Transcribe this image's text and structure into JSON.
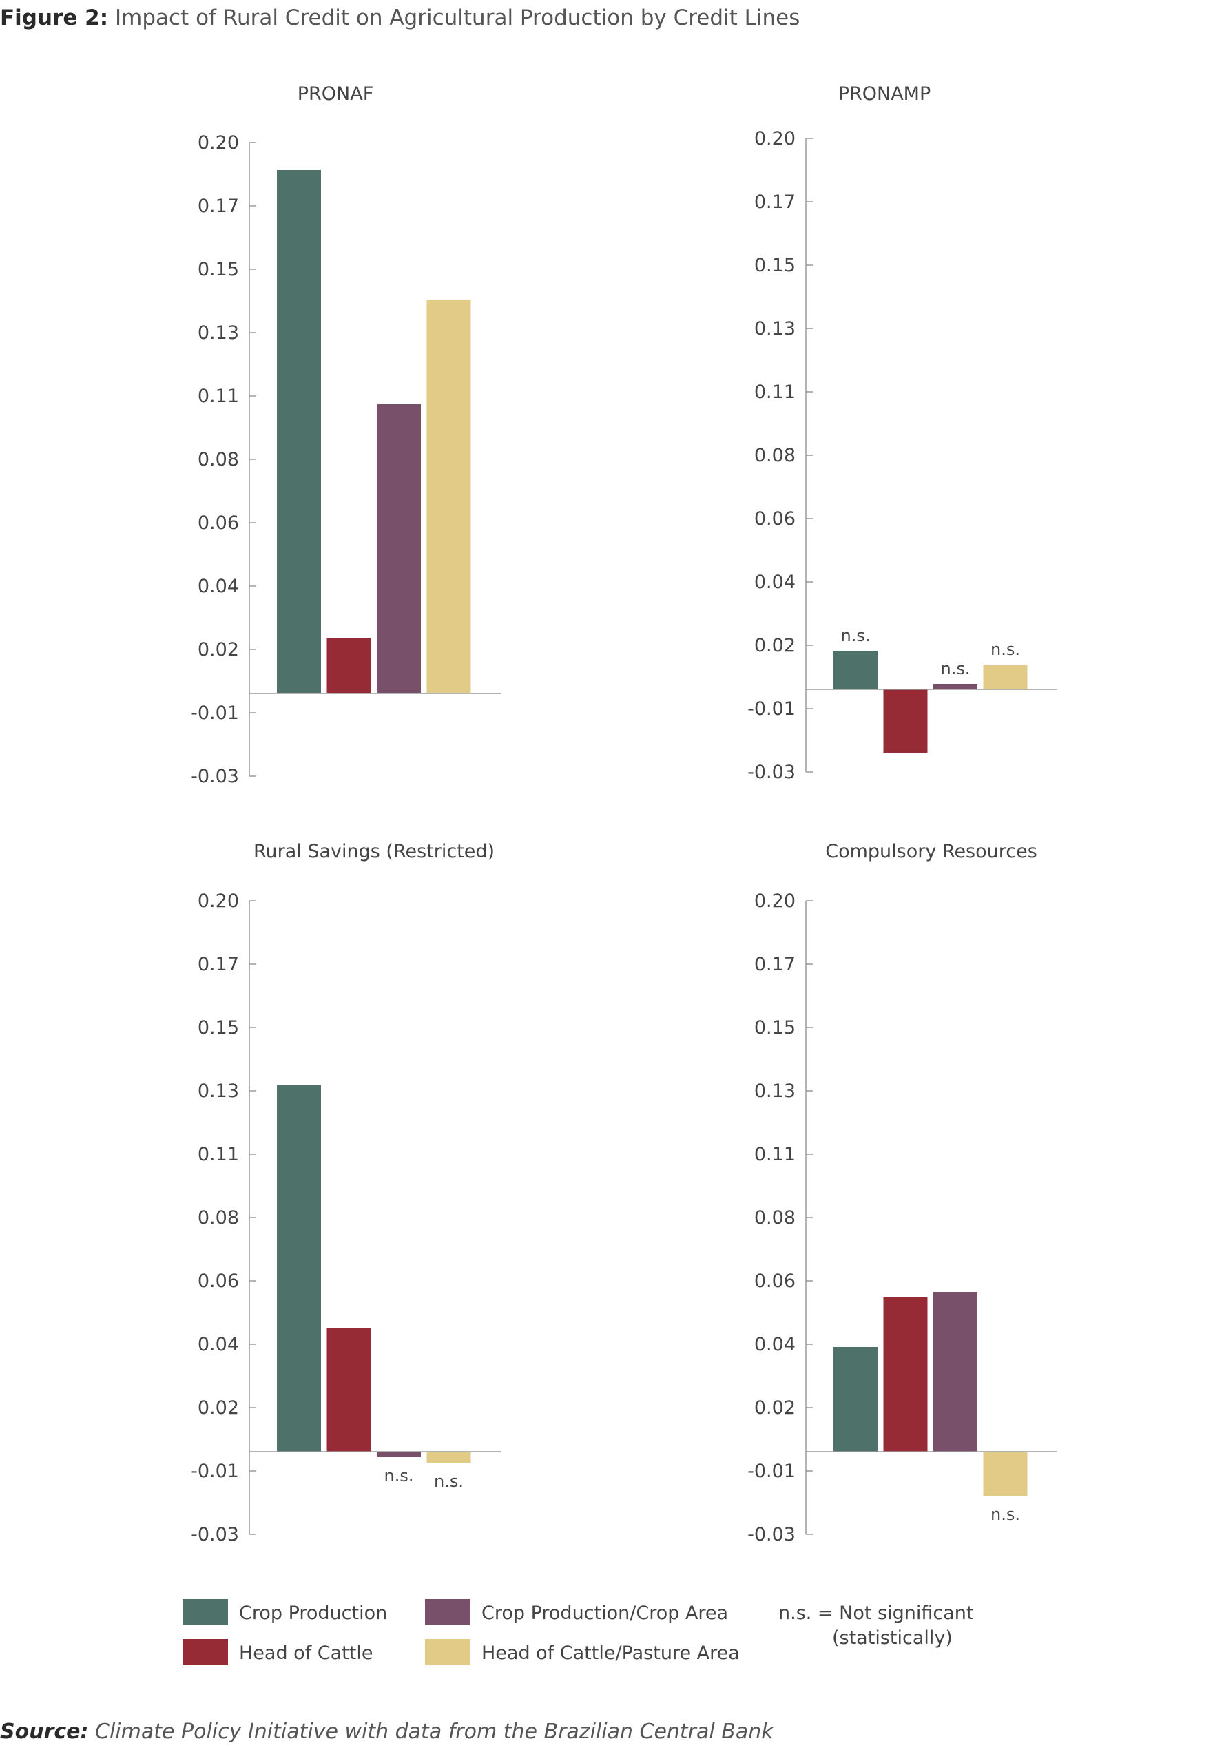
{
  "title": {
    "prefix": "Figure 2:",
    "text": "Impact of Rural Credit on Agricultural Production by Credit Lines"
  },
  "source": {
    "prefix": "Source:",
    "text": "Climate Policy Initiative with data from the Brazilian Central Bank"
  },
  "colors": {
    "Crop Production": "#4e716a",
    "Head of Cattle": "#962b35",
    "Crop Production/Crop Area": "#78506a",
    "Head of Cattle/Pasture Area": "#e1cb86"
  },
  "legend": {
    "items": [
      "Crop Production",
      "Crop Production/Crop Area",
      "Head of Cattle",
      "Head of Cattle/Pasture Area"
    ],
    "note_line1": "n.s. = Not significant",
    "note_line2": "(statistically)"
  },
  "chart_data": [
    {
      "type": "bar",
      "title": "PRONAF",
      "categories": [
        "Crop Production",
        "Head of Cattle",
        "Crop Production/Crop Area",
        "Head of Cattle/Pasture Area"
      ],
      "values": [
        0.19,
        0.02,
        0.105,
        0.143
      ],
      "not_significant": [
        false,
        false,
        false,
        false
      ],
      "yticks": [
        "0.20",
        "0.17",
        "0.15",
        "0.13",
        "0.11",
        "0.08",
        "0.06",
        "0.04",
        "0.02",
        "-0.01",
        "-0.03"
      ],
      "ylim": [
        -0.03,
        0.2
      ]
    },
    {
      "type": "bar",
      "title": "PRONAMP",
      "categories": [
        "Crop Production",
        "Head of Cattle",
        "Crop Production/Crop Area",
        "Head of Cattle/Pasture Area"
      ],
      "values": [
        0.014,
        -0.023,
        0.002,
        0.009
      ],
      "not_significant": [
        true,
        false,
        true,
        true
      ],
      "yticks": [
        "0.20",
        "0.17",
        "0.15",
        "0.13",
        "0.11",
        "0.08",
        "0.06",
        "0.04",
        "0.02",
        "-0.01",
        "-0.03"
      ],
      "ylim": [
        -0.03,
        0.2
      ]
    },
    {
      "type": "bar",
      "title": "Rural Savings (Restricted)",
      "categories": [
        "Crop Production",
        "Head of Cattle",
        "Crop Production/Crop Area",
        "Head of Cattle/Pasture Area"
      ],
      "values": [
        0.133,
        0.045,
        -0.002,
        -0.004
      ],
      "not_significant": [
        false,
        false,
        true,
        true
      ],
      "yticks": [
        "0.20",
        "0.17",
        "0.15",
        "0.13",
        "0.11",
        "0.08",
        "0.06",
        "0.04",
        "0.02",
        "-0.01",
        "-0.03"
      ],
      "ylim": [
        -0.03,
        0.2
      ]
    },
    {
      "type": "bar",
      "title": "Compulsory Resources",
      "categories": [
        "Crop Production",
        "Head of Cattle",
        "Crop Production/Crop Area",
        "Head of Cattle/Pasture Area"
      ],
      "values": [
        0.038,
        0.056,
        0.058,
        -0.016
      ],
      "not_significant": [
        false,
        false,
        false,
        true
      ],
      "yticks": [
        "0.20",
        "0.17",
        "0.15",
        "0.13",
        "0.11",
        "0.08",
        "0.06",
        "0.04",
        "0.02",
        "-0.01",
        "-0.03"
      ],
      "ylim": [
        -0.03,
        0.2
      ]
    }
  ]
}
